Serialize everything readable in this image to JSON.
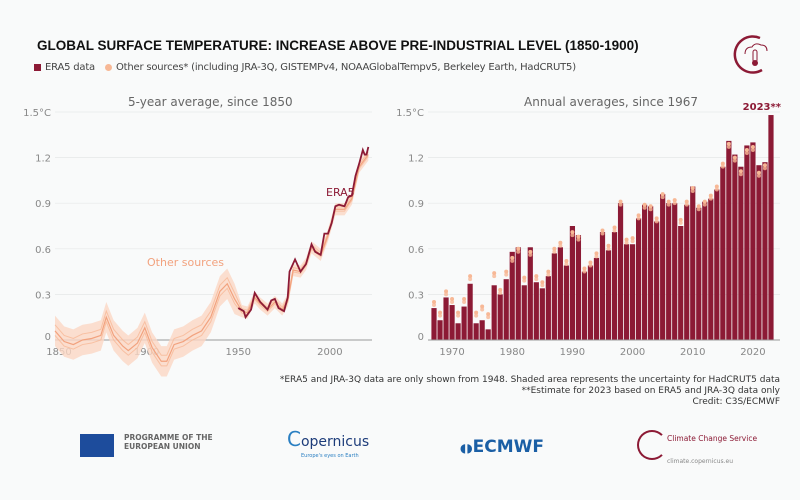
{
  "title": "GLOBAL SURFACE TEMPERATURE: INCREASE ABOVE PRE-INDUSTRIAL LEVEL (1850-1900)",
  "legend": {
    "era5": "ERA5 data",
    "others": "Other sources* (including JRA-3Q, GISTEMPv4, NOAAGlobalTempv5, Berkeley Earth, HadCRUT5)"
  },
  "colors": {
    "era5": "#8c1a35",
    "others": "#f7b896",
    "band": "#fbd7c4"
  },
  "chart_data": [
    {
      "type": "line",
      "title": "5-year average, since 1850",
      "yunit": "°C",
      "ylim": [
        0,
        1.5
      ],
      "xlim": [
        1850,
        2023
      ],
      "yticks": [
        "0",
        "0.3",
        "0.6",
        "0.9",
        "1.2",
        "1.5°C"
      ],
      "xticks": [
        "1850",
        "1900",
        "1950",
        "2000"
      ],
      "annotations": {
        "era5": "ERA5",
        "others": "Other sources"
      },
      "series": [
        {
          "name": "ERA5",
          "x": [
            1950,
            1953,
            1954,
            1957,
            1959,
            1962,
            1966,
            1968,
            1970,
            1972,
            1975,
            1977,
            1978,
            1981,
            1984,
            1987,
            1990,
            1992,
            1995,
            1997,
            1999,
            2001,
            2003,
            2005,
            2008,
            2010,
            2012,
            2014,
            2016,
            2018,
            2019,
            2020,
            2021
          ],
          "y": [
            0.21,
            0.19,
            0.15,
            0.2,
            0.31,
            0.25,
            0.2,
            0.26,
            0.27,
            0.21,
            0.19,
            0.28,
            0.45,
            0.53,
            0.45,
            0.5,
            0.63,
            0.58,
            0.56,
            0.7,
            0.7,
            0.77,
            0.88,
            0.89,
            0.88,
            0.94,
            0.95,
            1.08,
            1.16,
            1.25,
            1.22,
            1.22,
            1.27
          ]
        },
        {
          "name": "Other sources",
          "x": [
            1850,
            1855,
            1860,
            1865,
            1870,
            1875,
            1878,
            1882,
            1887,
            1890,
            1895,
            1899,
            1903,
            1908,
            1911,
            1915,
            1920,
            1925,
            1930,
            1935,
            1940,
            1944,
            1948,
            1952,
            1955,
            1959,
            1962,
            1966,
            1970,
            1974,
            1977,
            1980,
            1984,
            1987,
            1990,
            1995,
            1999,
            2003,
            2008,
            2012,
            2016,
            2021
          ],
          "y": [
            0.06,
            -0.01,
            -0.03,
            0.0,
            0.01,
            0.03,
            0.15,
            0.03,
            -0.04,
            -0.07,
            -0.02,
            0.08,
            -0.05,
            -0.14,
            -0.14,
            -0.03,
            -0.01,
            0.03,
            0.06,
            0.15,
            0.32,
            0.37,
            0.27,
            0.19,
            0.18,
            0.28,
            0.24,
            0.2,
            0.25,
            0.2,
            0.26,
            0.46,
            0.45,
            0.5,
            0.61,
            0.56,
            0.69,
            0.86,
            0.86,
            0.93,
            1.14,
            1.22
          ]
        }
      ]
    },
    {
      "type": "bar",
      "title": "Annual averages, since 1967",
      "yunit": "°C",
      "ylim": [
        0,
        1.5
      ],
      "yticks": [
        "0",
        "0.3",
        "0.6",
        "0.9",
        "1.2",
        "1.5°C"
      ],
      "xticks": [
        "1970",
        "1980",
        "1990",
        "2000",
        "2010",
        "2020"
      ],
      "annotation": "2023**",
      "x": [
        1967,
        1968,
        1969,
        1970,
        1971,
        1972,
        1973,
        1974,
        1975,
        1976,
        1977,
        1978,
        1979,
        1980,
        1981,
        1982,
        1983,
        1984,
        1985,
        1986,
        1987,
        1988,
        1989,
        1990,
        1991,
        1992,
        1993,
        1994,
        1995,
        1996,
        1997,
        1998,
        1999,
        2000,
        2001,
        2002,
        2003,
        2004,
        2005,
        2006,
        2007,
        2008,
        2009,
        2010,
        2011,
        2012,
        2013,
        2014,
        2015,
        2016,
        2017,
        2018,
        2019,
        2020,
        2021,
        2022,
        2023
      ],
      "era5": [
        0.21,
        0.13,
        0.28,
        0.23,
        0.11,
        0.22,
        0.37,
        0.11,
        0.13,
        0.07,
        0.36,
        0.3,
        0.4,
        0.58,
        0.61,
        0.36,
        0.61,
        0.38,
        0.34,
        0.42,
        0.57,
        0.61,
        0.49,
        0.75,
        0.69,
        0.45,
        0.49,
        0.54,
        0.71,
        0.59,
        0.71,
        0.9,
        0.63,
        0.63,
        0.8,
        0.89,
        0.88,
        0.78,
        0.96,
        0.9,
        0.9,
        0.75,
        0.89,
        1.01,
        0.87,
        0.91,
        0.93,
        0.99,
        1.14,
        1.31,
        1.22,
        1.14,
        1.28,
        1.3,
        1.15,
        1.17,
        1.48
      ],
      "others": [
        0.25,
        0.18,
        0.32,
        0.27,
        0.18,
        0.27,
        0.42,
        0.18,
        0.22,
        0.17,
        0.44,
        0.33,
        0.45,
        0.54,
        0.6,
        0.41,
        0.58,
        0.42,
        0.38,
        0.45,
        0.6,
        0.64,
        0.52,
        0.71,
        0.68,
        0.47,
        0.51,
        0.57,
        0.72,
        0.62,
        0.74,
        0.91,
        0.66,
        0.67,
        0.82,
        0.89,
        0.88,
        0.8,
        0.96,
        0.91,
        0.92,
        0.79,
        0.91,
        1.0,
        0.88,
        0.91,
        0.95,
        1.01,
        1.16,
        1.29,
        1.2,
        1.11,
        1.25,
        1.27,
        1.1,
        1.15,
        1.47
      ]
    }
  ],
  "notes": [
    "*ERA5 and JRA-3Q data are only shown from 1948. Shaded area represents the uncertainty for HadCRUT5 data",
    "**Estimate for 2023 based on ERA5 and JRA-3Q data only",
    "Credit: C3S/ECMWF"
  ],
  "footer": {
    "eu": "PROGRAMME OF THE EUROPEAN UNION",
    "copernicus": "opernicus",
    "copernicus_tag": "Europe's eyes on Earth",
    "ecmwf": "ECMWF",
    "c3s": "Climate Change Service",
    "c3s_url": "climate.copernicus.eu"
  }
}
